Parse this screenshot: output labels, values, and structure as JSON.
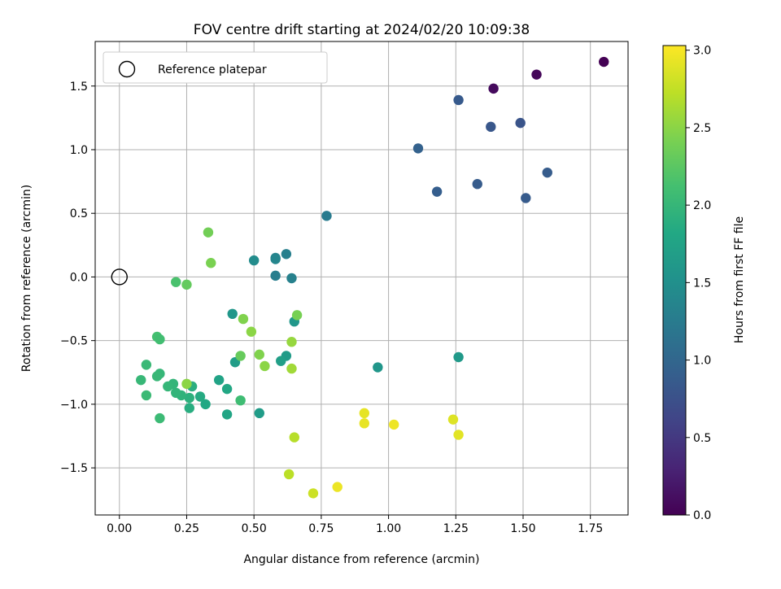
{
  "chart_data": {
    "type": "scatter",
    "title": "FOV centre drift starting at 2024/02/20 10:09:38",
    "xlabel": "Angular distance from reference (arcmin)",
    "ylabel": "Rotation from reference (arcmin)",
    "xlim": [
      -0.09,
      1.89
    ],
    "ylim": [
      -1.87,
      1.85
    ],
    "xticks": [
      0.0,
      0.25,
      0.5,
      0.75,
      1.0,
      1.25,
      1.5,
      1.75
    ],
    "xtick_labels": [
      "0.00",
      "0.25",
      "0.50",
      "0.75",
      "1.00",
      "1.25",
      "1.50",
      "1.75"
    ],
    "yticks": [
      -1.5,
      -1.0,
      -0.5,
      0.0,
      0.5,
      1.0,
      1.5
    ],
    "ytick_labels": [
      "−1.5",
      "−1.0",
      "−0.5",
      "0.0",
      "0.5",
      "1.0",
      "1.5"
    ],
    "grid": true,
    "legend": {
      "position": "top-left",
      "entries": [
        "Reference platepar"
      ]
    },
    "reference_point": {
      "x": 0.0,
      "y": 0.0
    },
    "colorbar": {
      "label": "Hours from first FF file",
      "colormap": "viridis",
      "range": [
        0.0,
        3.03
      ],
      "ticks": [
        0.0,
        0.5,
        1.0,
        1.5,
        2.0,
        2.5,
        3.0
      ],
      "tick_labels": [
        "0.0",
        "0.5",
        "1.0",
        "1.5",
        "2.0",
        "2.5",
        "3.0"
      ]
    },
    "points": [
      {
        "x": 1.8,
        "y": 1.69,
        "t": 0.0
      },
      {
        "x": 1.55,
        "y": 1.59,
        "t": 0.05
      },
      {
        "x": 1.39,
        "y": 1.48,
        "t": 0.08
      },
      {
        "x": 1.26,
        "y": 1.39,
        "t": 0.85
      },
      {
        "x": 1.49,
        "y": 1.21,
        "t": 0.78
      },
      {
        "x": 1.38,
        "y": 1.18,
        "t": 0.82
      },
      {
        "x": 1.11,
        "y": 1.01,
        "t": 0.95
      },
      {
        "x": 1.59,
        "y": 0.82,
        "t": 0.88
      },
      {
        "x": 1.33,
        "y": 0.73,
        "t": 0.87
      },
      {
        "x": 1.18,
        "y": 0.67,
        "t": 0.9
      },
      {
        "x": 1.51,
        "y": 0.62,
        "t": 0.86
      },
      {
        "x": 0.77,
        "y": 0.48,
        "t": 1.25
      },
      {
        "x": 0.62,
        "y": 0.18,
        "t": 1.3
      },
      {
        "x": 0.58,
        "y": 0.15,
        "t": 1.35
      },
      {
        "x": 0.58,
        "y": 0.14,
        "t": 1.38
      },
      {
        "x": 0.5,
        "y": 0.13,
        "t": 1.45
      },
      {
        "x": 0.58,
        "y": 0.01,
        "t": 1.28
      },
      {
        "x": 0.64,
        "y": -0.01,
        "t": 1.32
      },
      {
        "x": 0.65,
        "y": -0.35,
        "t": 1.6
      },
      {
        "x": 0.42,
        "y": -0.29,
        "t": 1.6
      },
      {
        "x": 1.26,
        "y": -0.63,
        "t": 1.62
      },
      {
        "x": 0.96,
        "y": -0.71,
        "t": 1.58
      },
      {
        "x": 0.62,
        "y": -0.62,
        "t": 1.65
      },
      {
        "x": 0.6,
        "y": -0.66,
        "t": 1.7
      },
      {
        "x": 0.43,
        "y": -0.67,
        "t": 1.67
      },
      {
        "x": 0.52,
        "y": -1.07,
        "t": 1.66
      },
      {
        "x": 0.37,
        "y": -0.81,
        "t": 1.75
      },
      {
        "x": 0.4,
        "y": -0.88,
        "t": 1.8
      },
      {
        "x": 0.4,
        "y": -1.08,
        "t": 1.78
      },
      {
        "x": 0.32,
        "y": -1.0,
        "t": 1.82
      },
      {
        "x": 0.3,
        "y": -0.94,
        "t": 1.85
      },
      {
        "x": 0.27,
        "y": -0.86,
        "t": 1.9
      },
      {
        "x": 0.26,
        "y": -0.95,
        "t": 1.92
      },
      {
        "x": 0.26,
        "y": -1.03,
        "t": 1.88
      },
      {
        "x": 0.23,
        "y": -0.93,
        "t": 1.95
      },
      {
        "x": 0.21,
        "y": -0.91,
        "t": 1.97
      },
      {
        "x": 0.2,
        "y": -0.84,
        "t": 1.98
      },
      {
        "x": 0.18,
        "y": -0.86,
        "t": 2.0
      },
      {
        "x": 0.15,
        "y": -0.76,
        "t": 2.0
      },
      {
        "x": 0.14,
        "y": -0.78,
        "t": 2.02
      },
      {
        "x": 0.1,
        "y": -0.69,
        "t": 2.03
      },
      {
        "x": 0.08,
        "y": -0.81,
        "t": 2.01
      },
      {
        "x": 0.1,
        "y": -0.93,
        "t": 2.04
      },
      {
        "x": 0.15,
        "y": -1.11,
        "t": 2.05
      },
      {
        "x": 0.14,
        "y": -0.47,
        "t": 2.12
      },
      {
        "x": 0.15,
        "y": -0.49,
        "t": 2.1
      },
      {
        "x": 0.21,
        "y": -0.04,
        "t": 2.15
      },
      {
        "x": 0.45,
        "y": -0.97,
        "t": 2.08
      },
      {
        "x": 0.25,
        "y": -0.06,
        "t": 2.3
      },
      {
        "x": 0.33,
        "y": 0.35,
        "t": 2.38
      },
      {
        "x": 0.34,
        "y": 0.11,
        "t": 2.42
      },
      {
        "x": 0.46,
        "y": -0.33,
        "t": 2.45
      },
      {
        "x": 0.49,
        "y": -0.43,
        "t": 2.5
      },
      {
        "x": 0.45,
        "y": -0.62,
        "t": 2.32
      },
      {
        "x": 0.52,
        "y": -0.61,
        "t": 2.45
      },
      {
        "x": 0.54,
        "y": -0.7,
        "t": 2.5
      },
      {
        "x": 0.66,
        "y": -0.3,
        "t": 2.4
      },
      {
        "x": 0.64,
        "y": -0.51,
        "t": 2.55
      },
      {
        "x": 0.64,
        "y": -0.72,
        "t": 2.6
      },
      {
        "x": 0.25,
        "y": -0.84,
        "t": 2.5
      },
      {
        "x": 0.65,
        "y": -1.26,
        "t": 2.7
      },
      {
        "x": 0.63,
        "y": -1.55,
        "t": 2.72
      },
      {
        "x": 0.72,
        "y": -1.7,
        "t": 2.8
      },
      {
        "x": 0.81,
        "y": -1.65,
        "t": 2.95
      },
      {
        "x": 0.91,
        "y": -1.07,
        "t": 2.92
      },
      {
        "x": 0.91,
        "y": -1.15,
        "t": 2.93
      },
      {
        "x": 1.02,
        "y": -1.16,
        "t": 2.96
      },
      {
        "x": 1.24,
        "y": -1.12,
        "t": 2.88
      },
      {
        "x": 1.26,
        "y": -1.24,
        "t": 2.9
      }
    ]
  }
}
